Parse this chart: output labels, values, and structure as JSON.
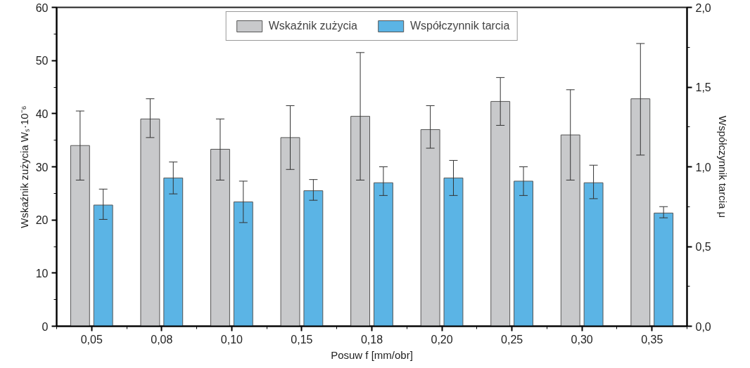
{
  "chart_data": {
    "type": "bar",
    "xlabel": "Posuw f [mm/obr]",
    "ylabel": "Wskaźnik zużycia Wₛ·10⁻⁶",
    "y2label": "Współczynnik tarcia μ",
    "categories": [
      "0,05",
      "0,08",
      "0,10",
      "0,15",
      "0,18",
      "0,20",
      "0,25",
      "0,30",
      "0,35"
    ],
    "series": [
      {
        "name": "Wskaźnik zużycia",
        "color": "#c8c9cb",
        "values": [
          34,
          39,
          33.3,
          35.5,
          39.5,
          37,
          42.3,
          36,
          42.8
        ],
        "errors": [
          [
            27.5,
            40.5
          ],
          [
            35.5,
            42.8
          ],
          [
            27.5,
            39
          ],
          [
            29.5,
            41.5
          ],
          [
            27.5,
            51.5
          ],
          [
            33.5,
            41.5
          ],
          [
            37.8,
            46.8
          ],
          [
            27.5,
            44.5
          ],
          [
            32.2,
            53.2
          ]
        ]
      },
      {
        "name": "Współczynnik tarcia",
        "color": "#5bb4e5",
        "axis": "y2",
        "values": [
          0.76,
          0.93,
          0.78,
          0.85,
          0.9,
          0.93,
          0.91,
          0.9,
          0.71
        ],
        "errors": [
          [
            0.67,
            0.86
          ],
          [
            0.83,
            1.03
          ],
          [
            0.65,
            0.91
          ],
          [
            0.79,
            0.92
          ],
          [
            0.82,
            1.0
          ],
          [
            0.82,
            1.04
          ],
          [
            0.82,
            1.0
          ],
          [
            0.8,
            1.01
          ],
          [
            0.68,
            0.75
          ]
        ]
      }
    ],
    "ylim": [
      0,
      60
    ],
    "yticks": [
      0,
      10,
      20,
      30,
      40,
      50,
      60
    ],
    "y2lim": [
      0,
      2.0
    ],
    "y2ticks": [
      {
        "value": 0,
        "label": "0,0"
      },
      {
        "value": 0.5,
        "label": "0,5"
      },
      {
        "value": 1.0,
        "label": "1,0"
      },
      {
        "value": 1.5,
        "label": "1,5"
      },
      {
        "value": 2.0,
        "label": "2,0"
      }
    ],
    "grid": false,
    "legend": "top"
  }
}
